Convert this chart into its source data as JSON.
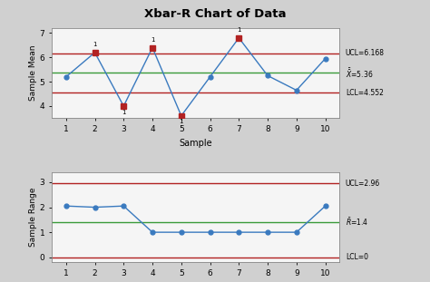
{
  "title": "Xbar-R Chart of Data",
  "xbar_data": [
    5.2,
    6.2,
    4.0,
    6.4,
    3.6,
    5.2,
    6.8,
    5.25,
    4.65,
    5.95
  ],
  "range_data": [
    2.05,
    2.0,
    2.05,
    1.0,
    1.0,
    1.0,
    1.0,
    1.0,
    1.0,
    2.05
  ],
  "samples": [
    1,
    2,
    3,
    4,
    5,
    6,
    7,
    8,
    9,
    10
  ],
  "xbar_ucl": 6.168,
  "xbar_mean": 5.36,
  "xbar_lcl": 4.552,
  "range_ucl": 2.96,
  "range_mean": 1.4,
  "range_lcl": 0,
  "xbar_out_of_control_idx": [
    1,
    2,
    3,
    4,
    6
  ],
  "xbar_label_above_idx": [
    1,
    3,
    6
  ],
  "xbar_label_below_idx": [
    2,
    4
  ],
  "xbar_ylim": [
    3.5,
    7.2
  ],
  "range_ylim": [
    -0.2,
    3.4
  ],
  "line_color": "#3a7abf",
  "ucl_lcl_color": "#b22222",
  "mean_color": "#3a9a3a",
  "out_color": "#b22222",
  "in_color": "#3a7abf",
  "bg_color": "#d0d0d0",
  "axes_bg": "#f5f5f5"
}
